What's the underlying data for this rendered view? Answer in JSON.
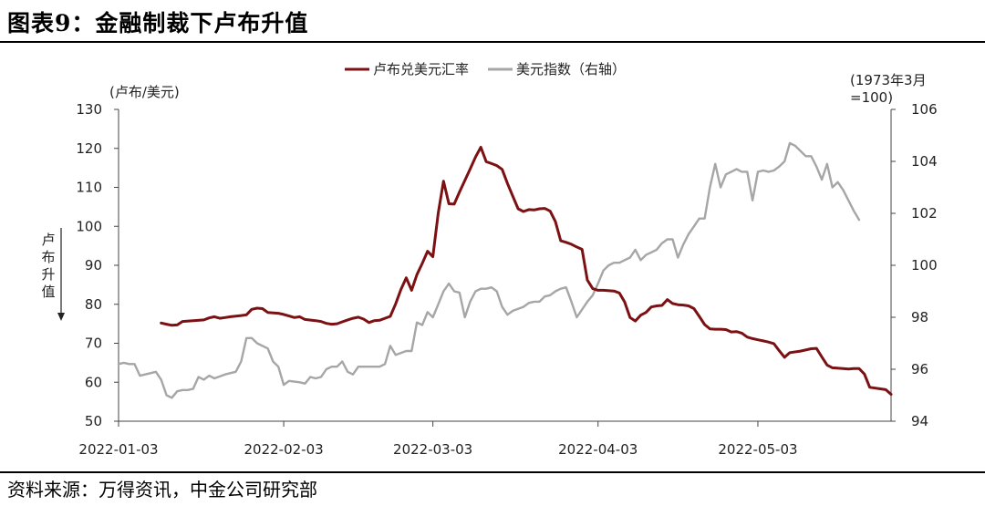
{
  "title": "图表9：金融制裁下卢布升值",
  "source": "资料来源：万得资讯，中金公司研究部",
  "colors": {
    "rub": "#7b1113",
    "dxy": "#a6a6a6"
  },
  "chart_data": {
    "type": "line",
    "legend_position": "top-center",
    "grid": false,
    "left_axis": {
      "label": "(卢布/美元)",
      "ylim": [
        50,
        130
      ],
      "ticks": [
        "50",
        "60",
        "70",
        "80",
        "90",
        "100",
        "110",
        "120",
        "130"
      ],
      "annotation": "卢布升值",
      "inverted_hint_arrow": "down"
    },
    "right_axis": {
      "label_line1": "(1973年3月",
      "label_line2": "=100)",
      "ylim": [
        94,
        106
      ],
      "ticks": [
        "94",
        "96",
        "98",
        "100",
        "102",
        "104",
        "106"
      ]
    },
    "x_axis": {
      "range_days": [
        0,
        145
      ],
      "ticks": [
        {
          "label": "2022-01-03",
          "day": 0
        },
        {
          "label": "2022-02-03",
          "day": 31
        },
        {
          "label": "2022-03-03",
          "day": 59
        },
        {
          "label": "2022-04-03",
          "day": 90
        },
        {
          "label": "2022-05-03",
          "day": 120
        }
      ]
    },
    "series": [
      {
        "name": "卢布兑美元汇率",
        "axis": "left",
        "points": [
          [
            8,
            75.2
          ],
          [
            9,
            74.9
          ],
          [
            10,
            74.6
          ],
          [
            11,
            74.7
          ],
          [
            12,
            75.6
          ],
          [
            14,
            75.8
          ],
          [
            16,
            76.0
          ],
          [
            17,
            76.5
          ],
          [
            18,
            76.8
          ],
          [
            19,
            76.4
          ],
          [
            20,
            76.6
          ],
          [
            21,
            76.8
          ],
          [
            23,
            77.1
          ],
          [
            24,
            77.3
          ],
          [
            25,
            78.7
          ],
          [
            26,
            79.0
          ],
          [
            27,
            78.9
          ],
          [
            28,
            77.9
          ],
          [
            30,
            77.7
          ],
          [
            31,
            77.4
          ],
          [
            32,
            77.0
          ],
          [
            33,
            76.6
          ],
          [
            34,
            76.8
          ],
          [
            35,
            76.1
          ],
          [
            37,
            75.8
          ],
          [
            38,
            75.6
          ],
          [
            39,
            75.1
          ],
          [
            40,
            74.9
          ],
          [
            41,
            75.0
          ],
          [
            42,
            75.5
          ],
          [
            43,
            76.0
          ],
          [
            44,
            76.4
          ],
          [
            45,
            76.7
          ],
          [
            46,
            76.2
          ],
          [
            47,
            75.3
          ],
          [
            48,
            75.8
          ],
          [
            49,
            75.9
          ],
          [
            50,
            76.4
          ],
          [
            51,
            76.9
          ],
          [
            52,
            80.1
          ],
          [
            53,
            83.8
          ],
          [
            54,
            86.8
          ],
          [
            55,
            83.6
          ],
          [
            56,
            87.6
          ],
          [
            57,
            90.5
          ],
          [
            58,
            93.6
          ],
          [
            59,
            92.2
          ],
          [
            60,
            103.4
          ],
          [
            61,
            111.6
          ],
          [
            62,
            105.8
          ],
          [
            63,
            105.7
          ],
          [
            64,
            108.8
          ],
          [
            66,
            114.7
          ],
          [
            67,
            117.8
          ],
          [
            68,
            120.3
          ],
          [
            69,
            116.6
          ],
          [
            70,
            116.1
          ],
          [
            71,
            115.6
          ],
          [
            72,
            114.6
          ],
          [
            73,
            111.0
          ],
          [
            74,
            107.7
          ],
          [
            75,
            104.5
          ],
          [
            76,
            103.8
          ],
          [
            77,
            104.3
          ],
          [
            78,
            104.2
          ],
          [
            79,
            104.5
          ],
          [
            80,
            104.6
          ],
          [
            81,
            103.9
          ],
          [
            82,
            101.2
          ],
          [
            83,
            96.3
          ],
          [
            84,
            95.9
          ],
          [
            85,
            95.4
          ],
          [
            86,
            94.7
          ],
          [
            87,
            94.1
          ],
          [
            88,
            86.2
          ],
          [
            89,
            84.0
          ],
          [
            90,
            83.6
          ],
          [
            91,
            83.6
          ],
          [
            93,
            83.4
          ],
          [
            94,
            82.9
          ],
          [
            95,
            80.6
          ],
          [
            96,
            76.6
          ],
          [
            97,
            75.7
          ],
          [
            98,
            77.2
          ],
          [
            99,
            77.9
          ],
          [
            100,
            79.3
          ],
          [
            101,
            79.6
          ],
          [
            102,
            79.7
          ],
          [
            103,
            81.2
          ],
          [
            104,
            80.2
          ],
          [
            105,
            79.9
          ],
          [
            106,
            79.8
          ],
          [
            107,
            79.6
          ],
          [
            108,
            78.9
          ],
          [
            109,
            76.9
          ],
          [
            110,
            74.8
          ],
          [
            111,
            73.7
          ],
          [
            112,
            73.6
          ],
          [
            113,
            73.6
          ],
          [
            114,
            73.5
          ],
          [
            115,
            72.9
          ],
          [
            116,
            73.0
          ],
          [
            117,
            72.6
          ],
          [
            118,
            71.6
          ],
          [
            119,
            71.2
          ],
          [
            120,
            70.9
          ],
          [
            121,
            70.6
          ],
          [
            122,
            70.3
          ],
          [
            123,
            69.9
          ],
          [
            124,
            68.1
          ],
          [
            125,
            66.4
          ],
          [
            126,
            67.6
          ],
          [
            128,
            68.0
          ],
          [
            130,
            68.6
          ],
          [
            131,
            68.7
          ],
          [
            132,
            66.5
          ],
          [
            133,
            64.4
          ],
          [
            134,
            63.7
          ],
          [
            136,
            63.5
          ],
          [
            137,
            63.4
          ],
          [
            138,
            63.5
          ],
          [
            139,
            63.5
          ],
          [
            140,
            62.1
          ],
          [
            141,
            58.7
          ],
          [
            143,
            58.3
          ],
          [
            144,
            58.1
          ],
          [
            145,
            56.9
          ]
        ]
      },
      {
        "name": "美元指数（右轴）",
        "axis": "right",
        "points": [
          [
            0,
            96.2
          ],
          [
            1,
            96.25
          ],
          [
            2,
            96.2
          ],
          [
            3,
            96.2
          ],
          [
            4,
            95.75
          ],
          [
            5,
            95.8
          ],
          [
            6,
            95.85
          ],
          [
            7,
            95.9
          ],
          [
            8,
            95.6
          ],
          [
            9,
            95.0
          ],
          [
            10,
            94.9
          ],
          [
            11,
            95.15
          ],
          [
            12,
            95.2
          ],
          [
            13,
            95.2
          ],
          [
            14,
            95.25
          ],
          [
            15,
            95.7
          ],
          [
            16,
            95.6
          ],
          [
            17,
            95.75
          ],
          [
            18,
            95.65
          ],
          [
            20,
            95.8
          ],
          [
            22,
            95.9
          ],
          [
            23,
            96.3
          ],
          [
            24,
            97.2
          ],
          [
            25,
            97.2
          ],
          [
            26,
            97.0
          ],
          [
            28,
            96.8
          ],
          [
            29,
            96.3
          ],
          [
            30,
            96.1
          ],
          [
            31,
            95.4
          ],
          [
            32,
            95.55
          ],
          [
            34,
            95.5
          ],
          [
            35,
            95.45
          ],
          [
            36,
            95.7
          ],
          [
            37,
            95.65
          ],
          [
            38,
            95.7
          ],
          [
            39,
            96.0
          ],
          [
            40,
            96.1
          ],
          [
            41,
            96.1
          ],
          [
            42,
            96.3
          ],
          [
            43,
            95.9
          ],
          [
            44,
            95.8
          ],
          [
            45,
            96.1
          ],
          [
            47,
            96.1
          ],
          [
            48,
            96.1
          ],
          [
            49,
            96.1
          ],
          [
            50,
            96.2
          ],
          [
            51,
            96.9
          ],
          [
            52,
            96.55
          ],
          [
            54,
            96.7
          ],
          [
            55,
            96.7
          ],
          [
            56,
            97.8
          ],
          [
            57,
            97.7
          ],
          [
            58,
            98.2
          ],
          [
            59,
            98.0
          ],
          [
            60,
            98.5
          ],
          [
            61,
            99.0
          ],
          [
            62,
            99.3
          ],
          [
            63,
            99.0
          ],
          [
            64,
            98.95
          ],
          [
            65,
            98.0
          ],
          [
            66,
            98.6
          ],
          [
            67,
            99.0
          ],
          [
            68,
            99.1
          ],
          [
            69,
            99.1
          ],
          [
            70,
            99.15
          ],
          [
            71,
            99.0
          ],
          [
            72,
            98.4
          ],
          [
            73,
            98.1
          ],
          [
            74,
            98.25
          ],
          [
            76,
            98.4
          ],
          [
            77,
            98.55
          ],
          [
            78,
            98.6
          ],
          [
            79,
            98.6
          ],
          [
            80,
            98.8
          ],
          [
            81,
            98.85
          ],
          [
            82,
            99.0
          ],
          [
            83,
            99.1
          ],
          [
            84,
            99.15
          ],
          [
            85,
            98.6
          ],
          [
            86,
            98.0
          ],
          [
            87,
            98.3
          ],
          [
            88,
            98.6
          ],
          [
            89,
            98.85
          ],
          [
            90,
            99.3
          ],
          [
            91,
            99.8
          ],
          [
            92,
            100.0
          ],
          [
            93,
            100.1
          ],
          [
            94,
            100.1
          ],
          [
            95,
            100.2
          ],
          [
            96,
            100.3
          ],
          [
            97,
            100.6
          ],
          [
            98,
            100.2
          ],
          [
            99,
            100.4
          ],
          [
            100,
            100.5
          ],
          [
            101,
            100.6
          ],
          [
            102,
            100.85
          ],
          [
            103,
            101.0
          ],
          [
            104,
            101.0
          ],
          [
            105,
            100.3
          ],
          [
            106,
            100.8
          ],
          [
            107,
            101.2
          ],
          [
            108,
            101.5
          ],
          [
            109,
            101.8
          ],
          [
            110,
            101.8
          ],
          [
            111,
            103.0
          ],
          [
            112,
            103.9
          ],
          [
            113,
            103.0
          ],
          [
            114,
            103.5
          ],
          [
            115,
            103.6
          ],
          [
            116,
            103.7
          ],
          [
            117,
            103.6
          ],
          [
            118,
            103.6
          ],
          [
            119,
            102.5
          ],
          [
            120,
            103.6
          ],
          [
            121,
            103.65
          ],
          [
            122,
            103.6
          ],
          [
            123,
            103.65
          ],
          [
            124,
            103.8
          ],
          [
            125,
            104.0
          ],
          [
            126,
            104.7
          ],
          [
            127,
            104.6
          ],
          [
            128,
            104.4
          ],
          [
            129,
            104.2
          ],
          [
            130,
            104.2
          ],
          [
            131,
            103.8
          ],
          [
            132,
            103.3
          ],
          [
            133,
            103.9
          ],
          [
            134,
            103.0
          ],
          [
            135,
            103.2
          ],
          [
            136,
            102.9
          ],
          [
            137,
            102.5
          ],
          [
            138,
            102.1
          ],
          [
            139,
            101.75
          ]
        ]
      }
    ]
  }
}
